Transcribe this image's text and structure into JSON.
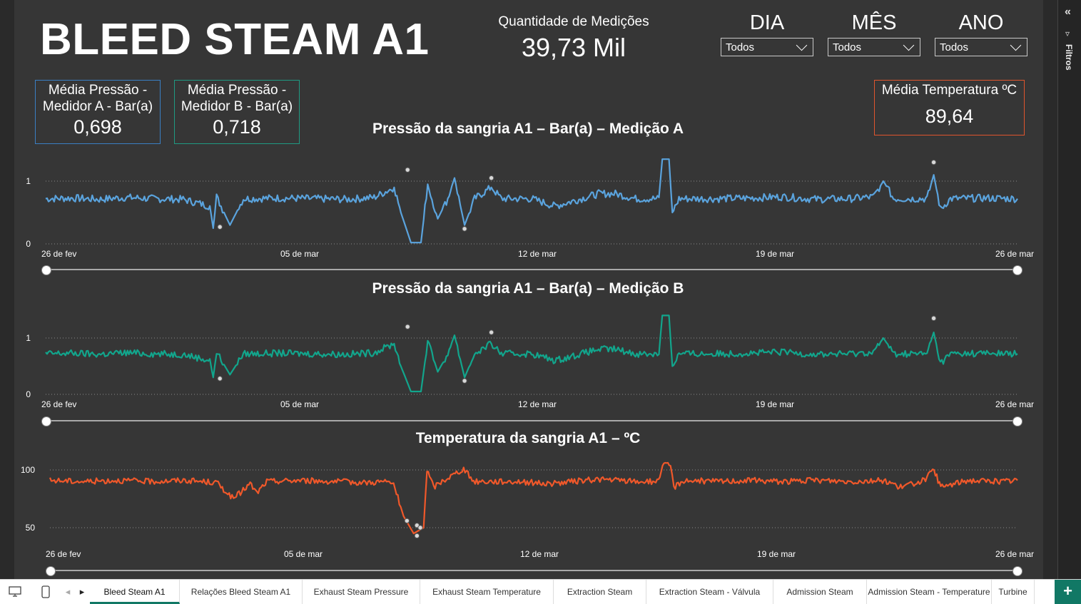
{
  "report": {
    "title": "BLEED STEAM A1",
    "count_label": "Quantidade de Medições",
    "count_value": "39,73 Mil"
  },
  "slicers": [
    {
      "label": "DIA",
      "value": "Todos"
    },
    {
      "label": "MÊS",
      "value": "Todos"
    },
    {
      "label": "ANO",
      "value": "Todos"
    }
  ],
  "cards": {
    "pressure_a": {
      "label_line1": "Média Pressão -",
      "label_line2": "Medidor A - Bar(a)",
      "value": "0,698",
      "border": "#3a7fc4"
    },
    "pressure_b": {
      "label_line1": "Média Pressão -",
      "label_line2": "Medidor B - Bar(a)",
      "value": "0,718",
      "border": "#1f9a82"
    },
    "temperature": {
      "label": "Média Temperatura ºC",
      "value": "89,64",
      "border": "#e0552d"
    }
  },
  "filter_pane": {
    "label": "Filtros",
    "collapse_icon": "double-chevron-icon",
    "filter_icon": "funnel-icon"
  },
  "chart_data": [
    {
      "type": "line",
      "title": "Pressão da sangria A1 – Bar(a) – Medição A",
      "color": "#5aa3dd",
      "x_ticks": [
        "26 de fev",
        "05 de mar",
        "12 de mar",
        "19 de mar",
        "26 de mar"
      ],
      "y_ticks": [
        "0",
        "1"
      ],
      "ylim": [
        0,
        1.3
      ],
      "baseline": 0.72,
      "series": [
        {
          "values": [
            [
              0,
              0.72
            ],
            [
              0.8,
              0.73
            ],
            [
              1.6,
              0.71
            ],
            [
              2.4,
              0.74
            ],
            [
              3.2,
              0.72
            ],
            [
              4.1,
              0.71
            ],
            [
              4.9,
              0.6
            ],
            [
              5.0,
              0.25
            ],
            [
              5.1,
              0.75
            ],
            [
              5.5,
              0.3
            ],
            [
              5.9,
              0.72
            ],
            [
              7.0,
              0.73
            ],
            [
              8.0,
              0.72
            ],
            [
              9.0,
              0.71
            ],
            [
              9.8,
              0.74
            ],
            [
              10.4,
              0.9
            ],
            [
              10.6,
              0.5
            ],
            [
              10.9,
              0.02
            ],
            [
              11.2,
              0.02
            ],
            [
              11.4,
              0.95
            ],
            [
              11.7,
              0.4
            ],
            [
              12.0,
              0.72
            ],
            [
              12.2,
              1.05
            ],
            [
              12.5,
              0.3
            ],
            [
              12.8,
              0.72
            ],
            [
              13.3,
              0.9
            ],
            [
              13.6,
              0.72
            ],
            [
              14.5,
              0.72
            ],
            [
              15.2,
              0.6
            ],
            [
              16.5,
              0.8
            ],
            [
              17.0,
              0.8
            ],
            [
              17.6,
              0.72
            ],
            [
              18.3,
              0.72
            ],
            [
              18.4,
              1.35
            ],
            [
              18.6,
              1.35
            ],
            [
              18.7,
              0.5
            ],
            [
              18.9,
              0.72
            ],
            [
              20.0,
              0.72
            ],
            [
              21.0,
              0.73
            ],
            [
              22.0,
              0.75
            ],
            [
              23.0,
              0.71
            ],
            [
              24.0,
              0.72
            ],
            [
              24.7,
              0.75
            ],
            [
              25.0,
              1.0
            ],
            [
              25.3,
              0.72
            ],
            [
              26.3,
              0.72
            ],
            [
              26.5,
              1.1
            ],
            [
              26.7,
              0.55
            ],
            [
              27.0,
              0.72
            ],
            [
              28.0,
              0.73
            ],
            [
              29.0,
              0.72
            ]
          ]
        }
      ],
      "annotations": [
        {
          "x": 5.2,
          "y": 0.27
        },
        {
          "x": 10.8,
          "y": 1.18
        },
        {
          "x": 12.5,
          "y": 0.24
        },
        {
          "x": 13.3,
          "y": 1.05
        },
        {
          "x": 26.5,
          "y": 1.3
        }
      ]
    },
    {
      "type": "line",
      "title": "Pressão da sangria A1 – Bar(a) – Medição B",
      "color": "#12a58c",
      "x_ticks": [
        "26 de fev",
        "05 de mar",
        "12 de mar",
        "19 de mar",
        "26 de mar"
      ],
      "y_ticks": [
        "0",
        "1"
      ],
      "ylim": [
        0,
        1.3
      ],
      "baseline": 0.72,
      "series": [
        {
          "values": [
            [
              0,
              0.72
            ],
            [
              0.8,
              0.73
            ],
            [
              1.6,
              0.71
            ],
            [
              2.4,
              0.74
            ],
            [
              3.2,
              0.72
            ],
            [
              4.1,
              0.71
            ],
            [
              4.9,
              0.6
            ],
            [
              5.0,
              0.3
            ],
            [
              5.1,
              0.75
            ],
            [
              5.5,
              0.35
            ],
            [
              5.9,
              0.72
            ],
            [
              7.0,
              0.73
            ],
            [
              8.0,
              0.72
            ],
            [
              9.0,
              0.71
            ],
            [
              9.8,
              0.74
            ],
            [
              10.4,
              0.9
            ],
            [
              10.6,
              0.5
            ],
            [
              10.9,
              0.05
            ],
            [
              11.2,
              0.05
            ],
            [
              11.4,
              0.95
            ],
            [
              11.7,
              0.4
            ],
            [
              12.0,
              0.72
            ],
            [
              12.2,
              1.05
            ],
            [
              12.5,
              0.3
            ],
            [
              12.8,
              0.72
            ],
            [
              13.3,
              0.9
            ],
            [
              13.6,
              0.72
            ],
            [
              14.5,
              0.72
            ],
            [
              15.2,
              0.6
            ],
            [
              16.5,
              0.8
            ],
            [
              17.0,
              0.8
            ],
            [
              17.6,
              0.72
            ],
            [
              18.3,
              0.72
            ],
            [
              18.4,
              1.4
            ],
            [
              18.6,
              1.4
            ],
            [
              18.7,
              0.5
            ],
            [
              18.9,
              0.72
            ],
            [
              20.0,
              0.72
            ],
            [
              21.0,
              0.73
            ],
            [
              22.0,
              0.75
            ],
            [
              23.0,
              0.71
            ],
            [
              24.0,
              0.72
            ],
            [
              24.7,
              0.75
            ],
            [
              25.0,
              1.0
            ],
            [
              25.3,
              0.72
            ],
            [
              26.3,
              0.72
            ],
            [
              26.5,
              1.1
            ],
            [
              26.7,
              0.55
            ],
            [
              27.0,
              0.72
            ],
            [
              28.0,
              0.73
            ],
            [
              29.0,
              0.72
            ]
          ]
        }
      ],
      "annotations": [
        {
          "x": 5.2,
          "y": 0.28
        },
        {
          "x": 10.8,
          "y": 1.2
        },
        {
          "x": 12.5,
          "y": 0.24
        },
        {
          "x": 13.3,
          "y": 1.1
        },
        {
          "x": 26.5,
          "y": 1.35
        }
      ]
    },
    {
      "type": "line",
      "title": "Temperatura da sangria A1 – ºC",
      "color": "#f0582a",
      "x_ticks": [
        "26 de fev",
        "05 de mar",
        "12 de mar",
        "19 de mar",
        "26 de mar"
      ],
      "y_ticks": [
        "50",
        "100"
      ],
      "ylim": [
        30,
        110
      ],
      "baseline": 91,
      "series": [
        {
          "values": [
            [
              0,
              91
            ],
            [
              1.0,
              90
            ],
            [
              2.0,
              91
            ],
            [
              3.0,
              90
            ],
            [
              4.0,
              91
            ],
            [
              5.0,
              89
            ],
            [
              5.5,
              75
            ],
            [
              6.0,
              88
            ],
            [
              6.2,
              80
            ],
            [
              6.5,
              90
            ],
            [
              7.5,
              91
            ],
            [
              8.5,
              90
            ],
            [
              9.5,
              89
            ],
            [
              10.0,
              90
            ],
            [
              10.3,
              88
            ],
            [
              10.6,
              60
            ],
            [
              10.9,
              45
            ],
            [
              11.2,
              50
            ],
            [
              11.3,
              100
            ],
            [
              11.5,
              85
            ],
            [
              11.8,
              91
            ],
            [
              12.4,
              101
            ],
            [
              12.7,
              90
            ],
            [
              14.0,
              90
            ],
            [
              15.0,
              88
            ],
            [
              16.4,
              92
            ],
            [
              17.0,
              91
            ],
            [
              17.6,
              90
            ],
            [
              18.2,
              90
            ],
            [
              18.4,
              104
            ],
            [
              18.6,
              104
            ],
            [
              18.7,
              85
            ],
            [
              19.0,
              91
            ],
            [
              20.0,
              90
            ],
            [
              21.0,
              91
            ],
            [
              22.0,
              90
            ],
            [
              23.0,
              91
            ],
            [
              24.0,
              90
            ],
            [
              25.0,
              91
            ],
            [
              25.5,
              85
            ],
            [
              26.2,
              91
            ],
            [
              26.5,
              100
            ],
            [
              26.7,
              85
            ],
            [
              27.5,
              91
            ],
            [
              28.5,
              90
            ],
            [
              29.0,
              91
            ]
          ]
        }
      ],
      "annotations": [
        {
          "x": 10.7,
          "y": 56
        },
        {
          "x": 11.0,
          "y": 52
        },
        {
          "x": 11.1,
          "y": 50
        },
        {
          "x": 11.0,
          "y": 43
        }
      ]
    }
  ],
  "tabs": [
    {
      "label": "Bleed Steam A1",
      "active": true
    },
    {
      "label": "Relações Bleed Steam A1"
    },
    {
      "label": "Exhaust Steam Pressure"
    },
    {
      "label": "Exhaust Steam Temperature"
    },
    {
      "label": "Extraction Steam"
    },
    {
      "label": "Extraction Steam - Válvula"
    },
    {
      "label": "Admission Steam"
    },
    {
      "label": "Admission Steam - Temperature"
    },
    {
      "label": "Turbine"
    }
  ],
  "tabbar_controls": {
    "desktop_icon": "monitor-icon",
    "mobile_icon": "phone-icon",
    "add_label": "+"
  }
}
